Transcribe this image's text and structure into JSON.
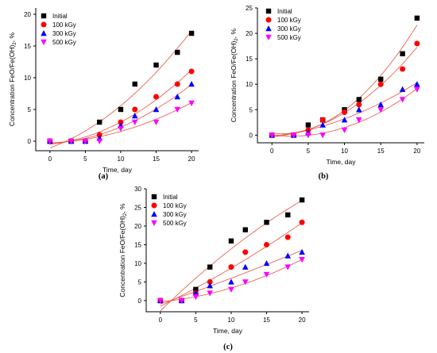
{
  "colors": {
    "Initial": "#000000",
    "100 kGy": "#ff0000",
    "300 kGy": "#0000ff",
    "500 kGy": "#ff00ff",
    "fit_line": "#e8503f",
    "axis": "#000000"
  },
  "chart_data": [
    {
      "type": "scatter",
      "panel_label": "(a)",
      "xlabel": "Time, day",
      "ylabel": "Concentration FeO/Fe(OH)",
      "ylabel_subscript": "2",
      "ylabel_suffix": ", %",
      "xlim": [
        -2,
        21
      ],
      "ylim": [
        -1.5,
        21
      ],
      "xticks": [
        0,
        5,
        10,
        15,
        20
      ],
      "yticks": [
        0,
        5,
        10,
        15,
        20
      ],
      "legend_position": "top-left",
      "fit_curves": true,
      "series": [
        {
          "name": "Initial",
          "marker": "square",
          "x": [
            0,
            3,
            5,
            7,
            10,
            12,
            15,
            18,
            20
          ],
          "y": [
            0,
            0,
            0,
            3,
            5,
            9,
            12,
            14,
            17
          ]
        },
        {
          "name": "100 kGy",
          "marker": "circle",
          "x": [
            0,
            3,
            5,
            7,
            10,
            12,
            15,
            18,
            20
          ],
          "y": [
            0,
            0,
            0,
            1,
            3,
            5,
            7,
            9,
            11
          ]
        },
        {
          "name": "300 kGy",
          "marker": "triangle-up",
          "x": [
            0,
            3,
            5,
            7,
            10,
            12,
            15,
            18,
            20
          ],
          "y": [
            0,
            0,
            0,
            0.5,
            2.5,
            4,
            5,
            7,
            9
          ]
        },
        {
          "name": "500 kGy",
          "marker": "triangle-down",
          "x": [
            0,
            3,
            5,
            7,
            10,
            12,
            15,
            18,
            20
          ],
          "y": [
            0,
            0,
            0,
            0,
            2,
            3,
            3,
            5,
            6
          ]
        }
      ]
    },
    {
      "type": "scatter",
      "panel_label": "(b)",
      "xlabel": "Time, day",
      "ylabel": "Concentration FeO/Fe(OH)",
      "ylabel_subscript": "2",
      "ylabel_suffix": ", %",
      "xlim": [
        -2,
        21
      ],
      "ylim": [
        -1.5,
        25
      ],
      "xticks": [
        0,
        5,
        10,
        15,
        20
      ],
      "yticks": [
        0,
        5,
        10,
        15,
        20,
        25
      ],
      "legend_position": "top-left",
      "fit_curves": true,
      "series": [
        {
          "name": "Initial",
          "marker": "square",
          "x": [
            0,
            3,
            5,
            7,
            10,
            12,
            15,
            18,
            20
          ],
          "y": [
            0,
            0,
            2,
            3,
            5,
            7,
            11,
            16,
            23
          ]
        },
        {
          "name": "100 kGy",
          "marker": "circle",
          "x": [
            0,
            3,
            5,
            7,
            10,
            12,
            15,
            18,
            20
          ],
          "y": [
            0,
            0,
            1,
            3,
            4.5,
            6,
            10,
            13,
            18
          ]
        },
        {
          "name": "300 kGy",
          "marker": "triangle-up",
          "x": [
            0,
            3,
            5,
            7,
            10,
            12,
            15,
            18,
            20
          ],
          "y": [
            0,
            0,
            0.5,
            2,
            3,
            5,
            6,
            9,
            10
          ]
        },
        {
          "name": "500 kGy",
          "marker": "triangle-down",
          "x": [
            0,
            3,
            5,
            7,
            10,
            12,
            15,
            18,
            20
          ],
          "y": [
            0,
            0,
            0,
            0,
            1,
            3,
            5,
            7,
            9
          ]
        }
      ]
    },
    {
      "type": "scatter",
      "panel_label": "(c)",
      "xlabel": "Time, day",
      "ylabel": "Concentration FeO/Fe(OH)",
      "ylabel_subscript": "2",
      "ylabel_suffix": ", %",
      "xlim": [
        -2,
        21
      ],
      "ylim": [
        -3,
        30
      ],
      "xticks": [
        0,
        5,
        10,
        15,
        20
      ],
      "yticks": [
        0,
        5,
        10,
        15,
        20,
        25,
        30
      ],
      "legend_position": "top-left",
      "fit_curves": true,
      "series": [
        {
          "name": "Initial",
          "marker": "square",
          "x": [
            0,
            3,
            5,
            7,
            10,
            12,
            15,
            18,
            20
          ],
          "y": [
            0,
            0,
            3,
            9,
            16,
            19,
            21,
            23,
            27
          ]
        },
        {
          "name": "100 kGy",
          "marker": "circle",
          "x": [
            0,
            3,
            5,
            7,
            10,
            12,
            15,
            18,
            20
          ],
          "y": [
            0,
            0,
            2,
            5,
            9,
            13,
            15,
            17,
            21
          ]
        },
        {
          "name": "300 kGy",
          "marker": "triangle-up",
          "x": [
            0,
            3,
            5,
            7,
            10,
            12,
            15,
            18,
            20
          ],
          "y": [
            0,
            0,
            2,
            4,
            5,
            9,
            10,
            12,
            13
          ]
        },
        {
          "name": "500 kGy",
          "marker": "triangle-down",
          "x": [
            0,
            3,
            5,
            7,
            10,
            12,
            15,
            18,
            20
          ],
          "y": [
            0,
            0,
            1,
            2,
            3,
            5,
            7,
            9,
            11
          ]
        }
      ]
    }
  ]
}
